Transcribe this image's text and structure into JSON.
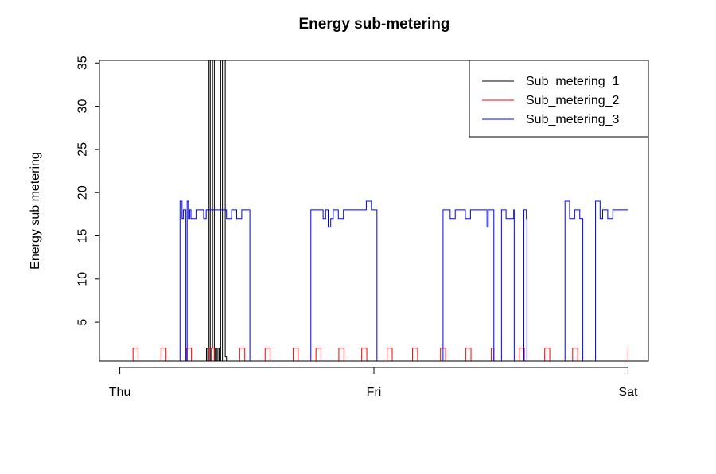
{
  "chart_data": {
    "type": "line",
    "title": "Energy sub-metering",
    "xlabel": "",
    "ylabel": "Energy sub metering",
    "x_ticks": [
      "Thu",
      "Fri",
      "Sat"
    ],
    "x_unit": "days (Thu 00:00 = 0, Fri 00:00 = 1, Sat 00:00 = 2)",
    "xlim": [
      -0.08,
      2.08
    ],
    "ylim": [
      0.5,
      35.3
    ],
    "y_ticks": [
      5,
      10,
      15,
      20,
      25,
      30,
      35
    ],
    "grid": false,
    "legend": {
      "position": "top-right",
      "entries": [
        "Sub_metering_1",
        "Sub_metering_2",
        "Sub_metering_3"
      ]
    },
    "series": [
      {
        "name": "Sub_metering_1",
        "color": "#000000",
        "x": [
          0,
          0.34,
          0.341,
          0.345,
          0.346,
          0.35,
          0.351,
          0.355,
          0.356,
          0.36,
          0.361,
          0.364,
          0.365,
          0.37,
          0.372,
          0.375,
          0.376,
          0.38,
          0.381,
          0.385,
          0.386,
          0.39,
          0.391,
          0.396,
          0.397,
          0.402,
          0.404,
          0.41,
          0.411,
          0.415,
          0.416,
          0.42,
          2.0
        ],
        "values": [
          0,
          0,
          2,
          2,
          0,
          0,
          38,
          38,
          0,
          0,
          2,
          2,
          38,
          38,
          0,
          0,
          2,
          2,
          0,
          0,
          2,
          2,
          0,
          0,
          38,
          38,
          0,
          38,
          38,
          1,
          1,
          0,
          0
        ]
      },
      {
        "name": "Sub_metering_2",
        "color": "#ff0000",
        "x": [
          0,
          0.05,
          0.052,
          0.07,
          0.072,
          0.16,
          0.162,
          0.18,
          0.182,
          0.26,
          0.262,
          0.28,
          0.282,
          0.35,
          0.352,
          0.37,
          0.372,
          0.47,
          0.472,
          0.49,
          0.492,
          0.57,
          0.572,
          0.59,
          0.592,
          0.68,
          0.682,
          0.7,
          0.702,
          0.77,
          0.772,
          0.79,
          0.792,
          0.86,
          0.862,
          0.88,
          0.882,
          0.95,
          0.952,
          0.97,
          0.972,
          1.05,
          1.052,
          1.07,
          1.072,
          1.15,
          1.152,
          1.17,
          1.172,
          1.26,
          1.262,
          1.28,
          1.282,
          1.36,
          1.362,
          1.38,
          1.382,
          1.46,
          1.462,
          1.47,
          1.472,
          1.57,
          1.572,
          1.59,
          1.592,
          1.67,
          1.672,
          1.69,
          1.692,
          1.78,
          1.782,
          1.8,
          1.802,
          2.0
        ],
        "values": [
          0,
          0,
          2,
          2,
          0,
          0,
          2,
          2,
          0,
          0,
          2,
          2,
          0,
          0,
          2,
          2,
          0,
          0,
          2,
          2,
          0,
          0,
          2,
          2,
          0,
          0,
          2,
          2,
          0,
          0,
          2,
          2,
          0,
          0,
          2,
          2,
          0,
          0,
          2,
          2,
          0,
          0,
          2,
          2,
          0,
          0,
          2,
          2,
          0,
          0,
          2,
          2,
          0,
          0,
          2,
          2,
          0,
          0,
          2,
          2,
          0,
          0,
          2,
          2,
          0,
          0,
          2,
          2,
          0,
          0,
          2,
          2,
          0,
          2
        ]
      },
      {
        "name": "Sub_metering_3",
        "color": "#0000ff",
        "x": [
          0,
          0.235,
          0.237,
          0.245,
          0.25,
          0.26,
          0.265,
          0.27,
          0.275,
          0.28,
          0.3,
          0.32,
          0.33,
          0.34,
          0.36,
          0.38,
          0.4,
          0.42,
          0.44,
          0.46,
          0.48,
          0.5,
          0.51,
          0.512,
          0.75,
          0.752,
          0.8,
          0.81,
          0.82,
          0.83,
          0.84,
          0.86,
          0.88,
          0.9,
          0.92,
          0.94,
          0.95,
          0.97,
          0.99,
          1.0,
          1.01,
          1.012,
          1.27,
          1.272,
          1.3,
          1.32,
          1.34,
          1.36,
          1.38,
          1.4,
          1.42,
          1.44,
          1.445,
          1.45,
          1.47,
          1.472,
          1.5,
          1.502,
          1.52,
          1.55,
          1.552,
          1.57,
          1.59,
          1.6,
          1.602,
          1.75,
          1.752,
          1.77,
          1.79,
          1.81,
          1.82,
          1.822,
          1.87,
          1.872,
          1.89,
          1.9,
          1.92,
          1.94,
          2.0
        ],
        "values": [
          0,
          0,
          19,
          17,
          18,
          0,
          19,
          17,
          18,
          17,
          18,
          18,
          17,
          18,
          18,
          18,
          18,
          17,
          18,
          17,
          18,
          18,
          18,
          0,
          0,
          18,
          17,
          18,
          16,
          17,
          18,
          17,
          18,
          18,
          18,
          18,
          18,
          19,
          18,
          18,
          18,
          0,
          0,
          18,
          17,
          18,
          18,
          17,
          18,
          18,
          18,
          18,
          16,
          18,
          18,
          0,
          0,
          18,
          17,
          18,
          0,
          0,
          18,
          17,
          0,
          0,
          19,
          17,
          18,
          17,
          17,
          0,
          0,
          19,
          17,
          18,
          17,
          18,
          18
        ]
      }
    ]
  }
}
